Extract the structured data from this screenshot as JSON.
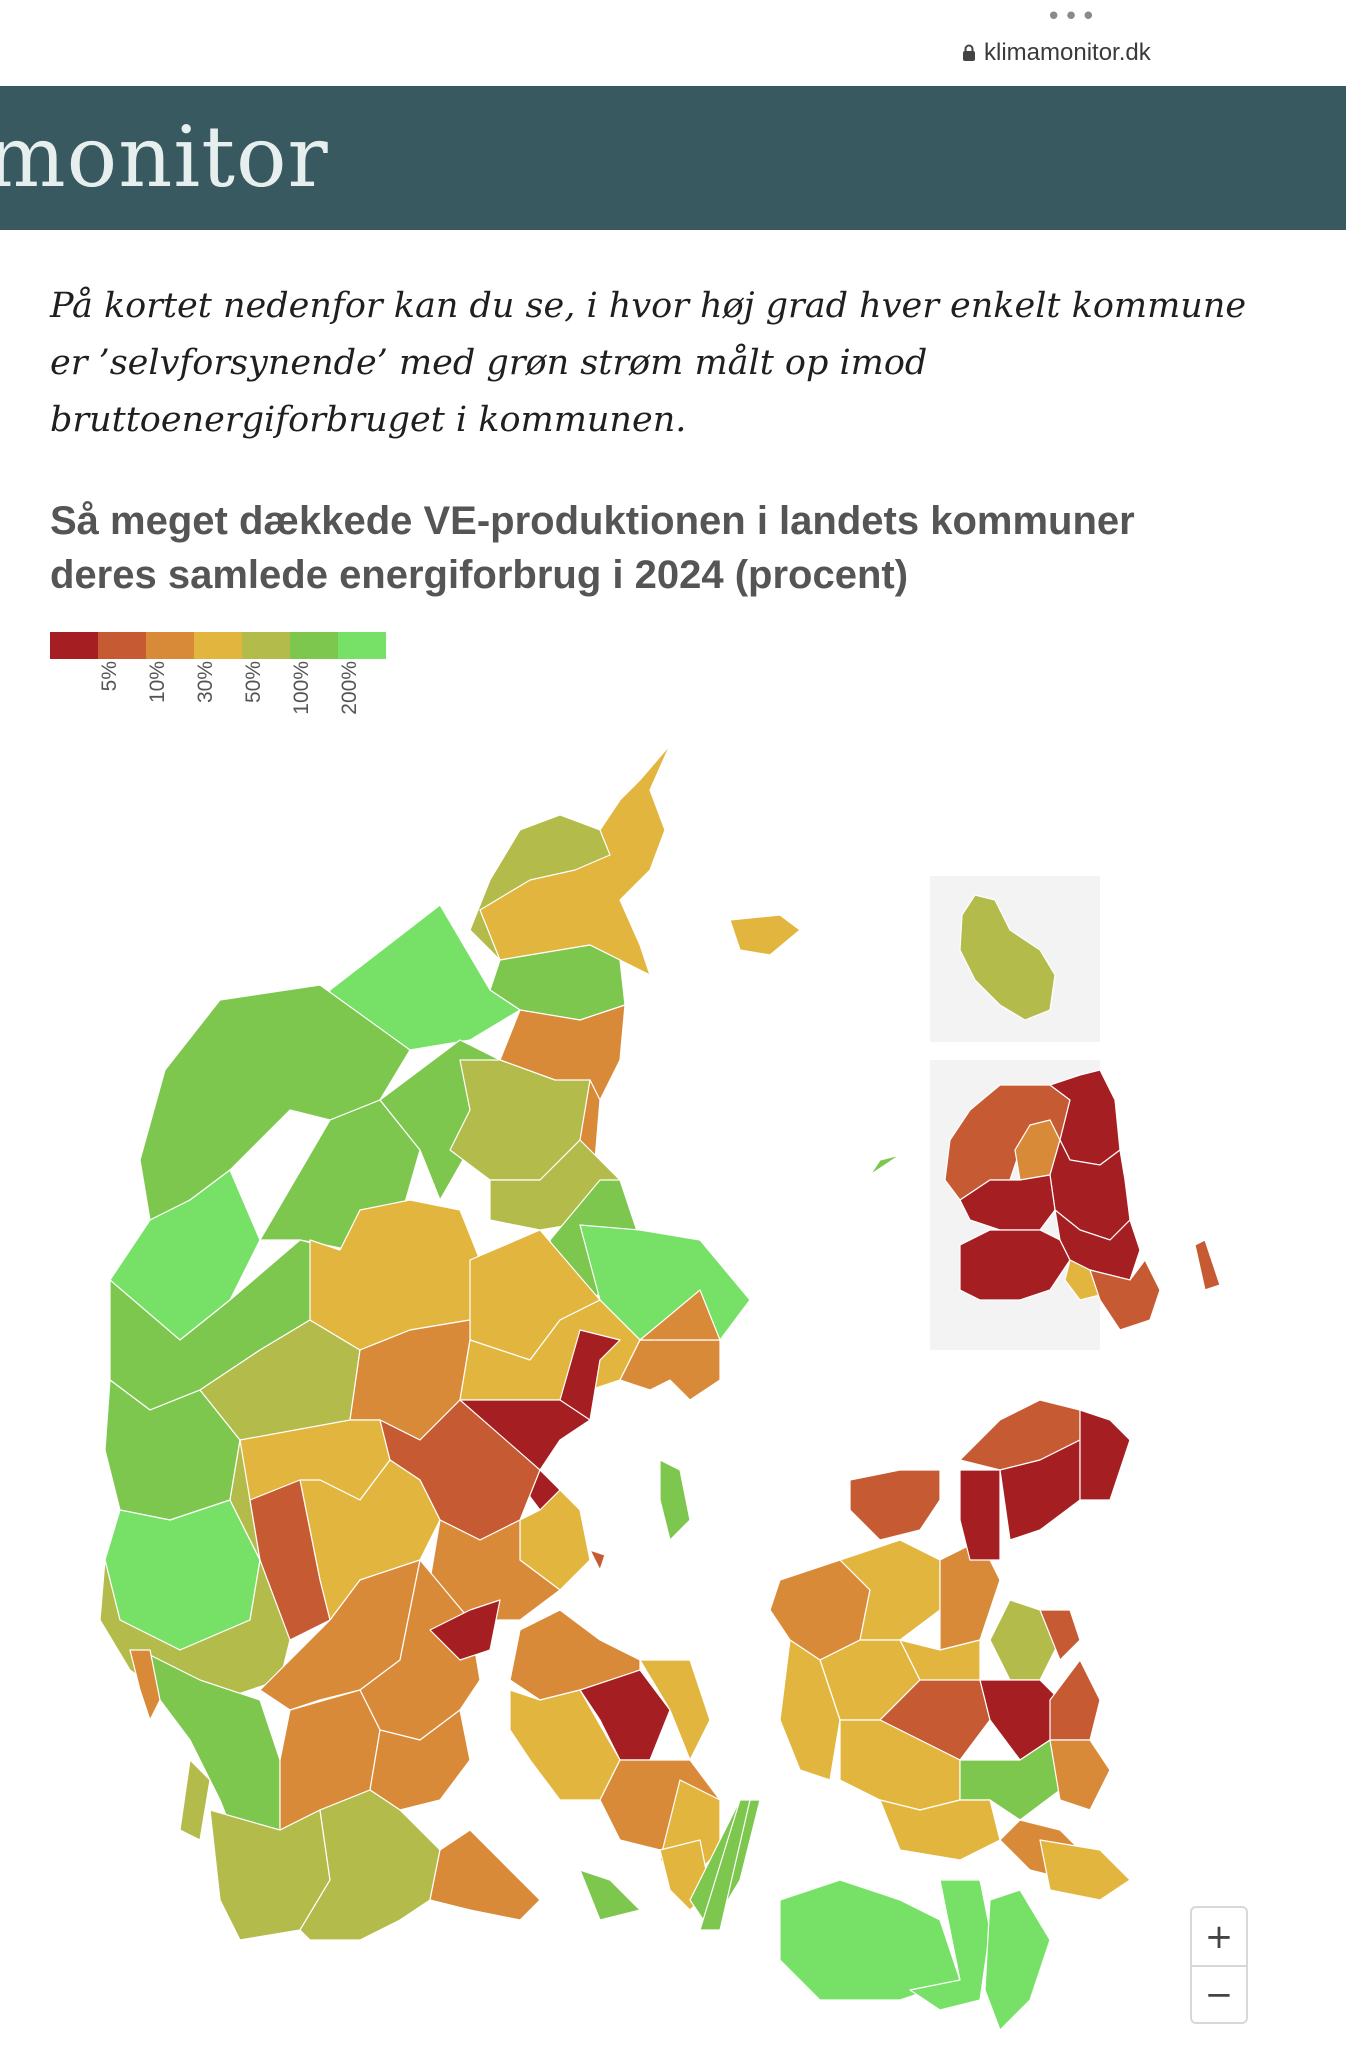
{
  "browser": {
    "menu_icon": "more-dots-icon",
    "url": "klimamonitor.dk",
    "lock_icon": "lock-icon"
  },
  "header": {
    "logo_text": "monitor",
    "background": "#37595f"
  },
  "intro_text": "På kortet nedenfor kan du se, i hvor høj grad hver enkelt kommune er ’selvforsynende’ med grøn strøm målt op imod bruttoenergiforbruget i kommunen.",
  "chart": {
    "title_line1": "Så meget dækkede VE-produktionen i landets kommuner",
    "title_line2": "deres samlede energiforbrug i 2024 (procent)"
  },
  "legend": {
    "colors": [
      "#a51e22",
      "#c65a32",
      "#d98a38",
      "#e2b53e",
      "#b3bc4a",
      "#7dc74f",
      "#76e166"
    ],
    "labels": [
      "5%",
      "10%",
      "30%",
      "50%",
      "100%",
      "200%"
    ]
  },
  "zoom": {
    "in_label": "+",
    "out_label": "−"
  }
}
